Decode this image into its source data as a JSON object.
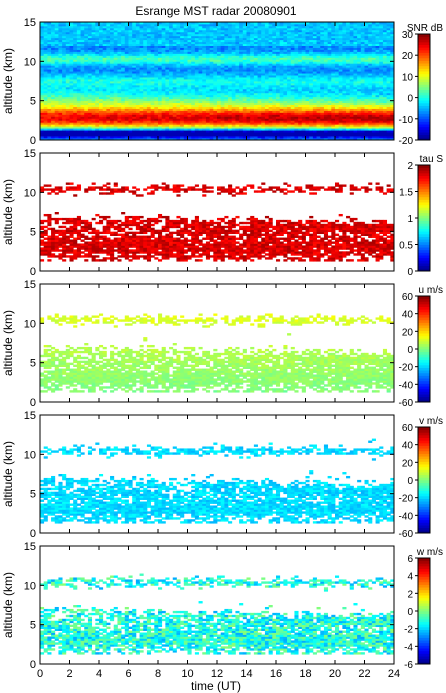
{
  "figure": {
    "title": "Esrange MST radar 20080901",
    "xlabel": "time (UT)"
  },
  "chart_data": [
    {
      "type": "heatmap",
      "quantity": "SNR",
      "colorbar_label": "SNR dB",
      "ylabel": "altitude (km)",
      "xlim": [
        0,
        24
      ],
      "ylim": [
        0,
        15
      ],
      "clim": [
        -20,
        30
      ],
      "x_ticks": [
        0,
        2,
        4,
        6,
        8,
        10,
        12,
        14,
        16,
        18,
        20,
        22,
        24
      ],
      "y_ticks": [
        0,
        5,
        10,
        15
      ],
      "colorbar_ticks": [
        30,
        20,
        10,
        0,
        -10,
        -20
      ]
    },
    {
      "type": "heatmap",
      "quantity": "tau",
      "colorbar_label": "tau S",
      "ylabel": "altitude (km)",
      "xlim": [
        0,
        24
      ],
      "ylim": [
        0,
        15
      ],
      "clim": [
        0,
        2
      ],
      "x_ticks": [
        0,
        2,
        4,
        6,
        8,
        10,
        12,
        14,
        16,
        18,
        20,
        22,
        24
      ],
      "y_ticks": [
        0,
        5,
        10,
        15
      ],
      "colorbar_ticks": [
        2,
        1.5,
        1,
        0.5,
        0
      ]
    },
    {
      "type": "heatmap",
      "quantity": "u",
      "colorbar_label": "u m/s",
      "ylabel": "altitude (km)",
      "xlim": [
        0,
        24
      ],
      "ylim": [
        0,
        15
      ],
      "clim": [
        -60,
        60
      ],
      "x_ticks": [
        0,
        2,
        4,
        6,
        8,
        10,
        12,
        14,
        16,
        18,
        20,
        22,
        24
      ],
      "y_ticks": [
        0,
        5,
        10,
        15
      ],
      "colorbar_ticks": [
        60,
        40,
        20,
        0,
        -20,
        -40,
        -60
      ]
    },
    {
      "type": "heatmap",
      "quantity": "v",
      "colorbar_label": "v m/s",
      "ylabel": "altitude (km)",
      "xlim": [
        0,
        24
      ],
      "ylim": [
        0,
        15
      ],
      "clim": [
        -60,
        60
      ],
      "x_ticks": [
        0,
        2,
        4,
        6,
        8,
        10,
        12,
        14,
        16,
        18,
        20,
        22,
        24
      ],
      "y_ticks": [
        0,
        5,
        10,
        15
      ],
      "colorbar_ticks": [
        60,
        40,
        20,
        0,
        -20,
        -40,
        -60
      ]
    },
    {
      "type": "heatmap",
      "quantity": "w",
      "colorbar_label": "w m/s",
      "ylabel": "altitude (km)",
      "xlim": [
        0,
        24
      ],
      "ylim": [
        0,
        15
      ],
      "clim": [
        -6,
        6
      ],
      "x_ticks": [
        0,
        2,
        4,
        6,
        8,
        10,
        12,
        14,
        16,
        18,
        20,
        22,
        24
      ],
      "y_ticks": [
        0,
        5,
        10,
        15
      ],
      "colorbar_ticks": [
        6,
        4,
        2,
        0,
        -2,
        -4,
        -6
      ]
    }
  ]
}
